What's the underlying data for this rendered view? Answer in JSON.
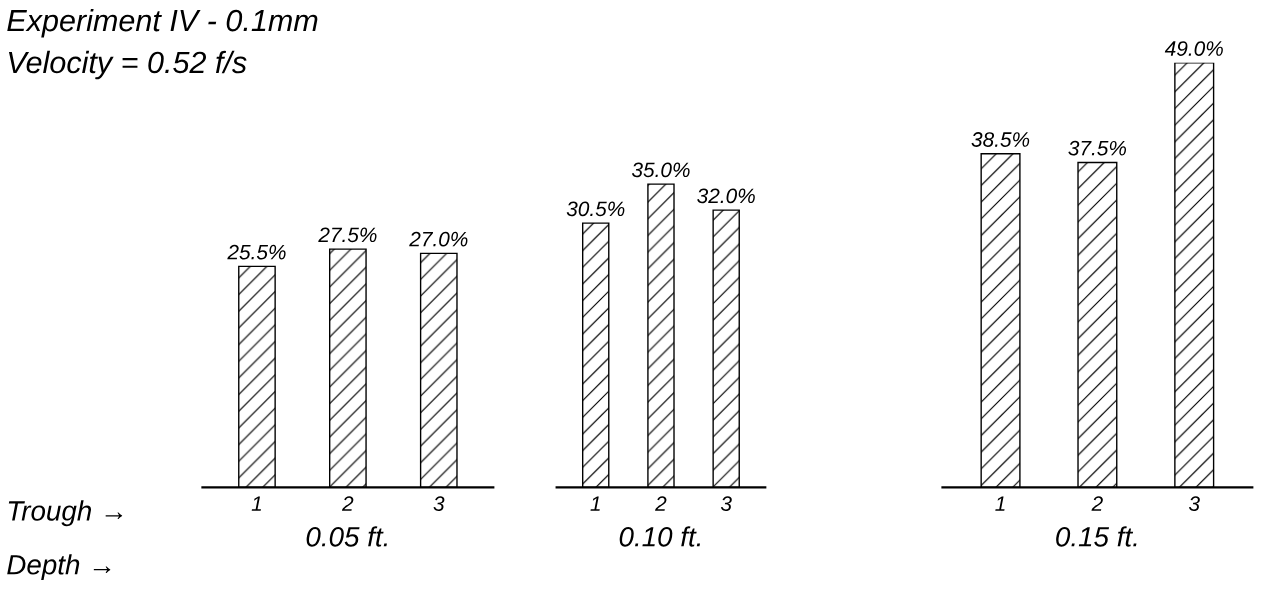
{
  "chart_data": [
    {
      "type": "bar",
      "title": "Experiment IV - 0.1mm",
      "subtitle": "Velocity = 0.52 f/s",
      "xlabel": "0.05 ft.",
      "categories": [
        "1",
        "2",
        "3"
      ],
      "values": [
        25.5,
        27.5,
        27.0
      ],
      "value_labels": [
        "25.5%",
        "27.5%",
        "27.0%"
      ],
      "tick_labels": "x",
      "grid": false,
      "legend": false,
      "annotations": [
        "Trough →",
        "Depth →"
      ]
    },
    {
      "type": "bar",
      "xlabel": "0.10 ft.",
      "categories": [
        "1",
        "2",
        "3"
      ],
      "values": [
        30.5,
        35.0,
        32.0
      ],
      "value_labels": [
        "30.5%",
        "35.0%",
        "32.0%"
      ],
      "tick_labels": "x",
      "grid": false,
      "legend": false
    },
    {
      "type": "bar",
      "xlabel": "0.15 ft.",
      "categories": [
        "1",
        "2",
        "3"
      ],
      "values": [
        38.5,
        37.5,
        49.0
      ],
      "value_labels": [
        "38.5%",
        "37.5%",
        "49.0%"
      ],
      "tick_labels": "x",
      "grid": false,
      "legend": false
    }
  ]
}
